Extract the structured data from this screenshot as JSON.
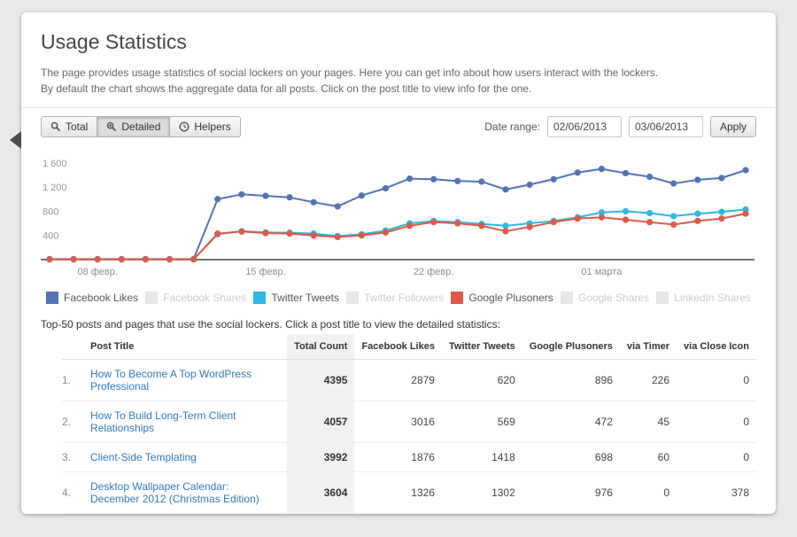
{
  "page": {
    "title": "Usage Statistics",
    "description_line1": "The page provides usage statistics of social lockers on your pages. Here you can get info about how users interact with the lockers.",
    "description_line2": "By default the chart shows the aggregate data for all posts. Click on the post title to view info for the one."
  },
  "toolbar": {
    "tabs": [
      {
        "label": "Total",
        "active": false
      },
      {
        "label": "Detailed",
        "active": true
      },
      {
        "label": "Helpers",
        "active": false
      }
    ],
    "date_range": {
      "label": "Date range:",
      "from": "02/06/2013",
      "to": "03/06/2013",
      "apply_label": "Apply"
    }
  },
  "chart_data": {
    "type": "line",
    "ylim": [
      0,
      1700
    ],
    "grid": false,
    "y_ticks": [
      {
        "value": 400,
        "label": "400"
      },
      {
        "value": 800,
        "label": "800"
      },
      {
        "value": 1200,
        "label": "1 200"
      },
      {
        "value": 1600,
        "label": "1 600"
      }
    ],
    "x_ticks": [
      {
        "index": 2,
        "label": "08 февр."
      },
      {
        "index": 9,
        "label": "15 февр."
      },
      {
        "index": 16,
        "label": "22 февр."
      },
      {
        "index": 23,
        "label": "01 марта"
      }
    ],
    "series": [
      {
        "name": "Facebook Likes",
        "color": "#5274b4",
        "values": [
          10,
          10,
          10,
          10,
          10,
          10,
          10,
          1000,
          1080,
          1055,
          1030,
          950,
          880,
          1060,
          1180,
          1340,
          1330,
          1300,
          1290,
          1160,
          1240,
          1330,
          1440,
          1500,
          1430,
          1370,
          1260,
          1320,
          1350,
          1480
        ]
      },
      {
        "name": "Twitter Tweets",
        "color": "#2db7e2",
        "values": [
          5,
          5,
          5,
          5,
          5,
          5,
          5,
          420,
          470,
          450,
          445,
          430,
          390,
          420,
          480,
          600,
          640,
          620,
          590,
          560,
          600,
          640,
          700,
          780,
          800,
          770,
          720,
          760,
          790,
          830
        ]
      },
      {
        "name": "Google Plusoners",
        "color": "#dd5a49",
        "values": [
          5,
          5,
          5,
          5,
          5,
          5,
          5,
          430,
          465,
          440,
          430,
          400,
          375,
          400,
          450,
          560,
          620,
          600,
          560,
          470,
          540,
          620,
          680,
          700,
          660,
          620,
          580,
          640,
          680,
          760
        ]
      }
    ]
  },
  "legend": {
    "items": [
      {
        "label": "Facebook Likes",
        "color": "#5274b4",
        "active": true
      },
      {
        "label": "Facebook Shares",
        "color": "#e6e6e6",
        "active": false
      },
      {
        "label": "Twitter Tweets",
        "color": "#2db7e2",
        "active": true
      },
      {
        "label": "Twitter Followers",
        "color": "#e6e6e6",
        "active": false
      },
      {
        "label": "Google Plusoners",
        "color": "#dd5a49",
        "active": true
      },
      {
        "label": "Google Shares",
        "color": "#e6e6e6",
        "active": false
      },
      {
        "label": "LinkedIn Shares",
        "color": "#e6e6e6",
        "active": false
      }
    ]
  },
  "table": {
    "note": "Top-50 posts and pages that use the social lockers. Click a post title to view the detailed statistics:",
    "headers": [
      "Post Title",
      "Total Count",
      "Facebook Likes",
      "Twitter Tweets",
      "Google Plusoners",
      "via Timer",
      "via Close Icon"
    ],
    "rows": [
      {
        "number": "1.",
        "title": "How To Become A Top WordPress Professional",
        "values": [
          "4395",
          "2879",
          "620",
          "896",
          "226",
          "0"
        ]
      },
      {
        "number": "2.",
        "title": "How To Build Long-Term Client Relationships",
        "values": [
          "4057",
          "3016",
          "569",
          "472",
          "45",
          "0"
        ]
      },
      {
        "number": "3.",
        "title": "Client-Side Templating",
        "values": [
          "3992",
          "1876",
          "1418",
          "698",
          "60",
          "0"
        ]
      },
      {
        "number": "4.",
        "title": "Desktop Wallpaper Calendar: December 2012 (Christmas Edition)",
        "values": [
          "3604",
          "1326",
          "1302",
          "976",
          "0",
          "378"
        ]
      }
    ]
  }
}
